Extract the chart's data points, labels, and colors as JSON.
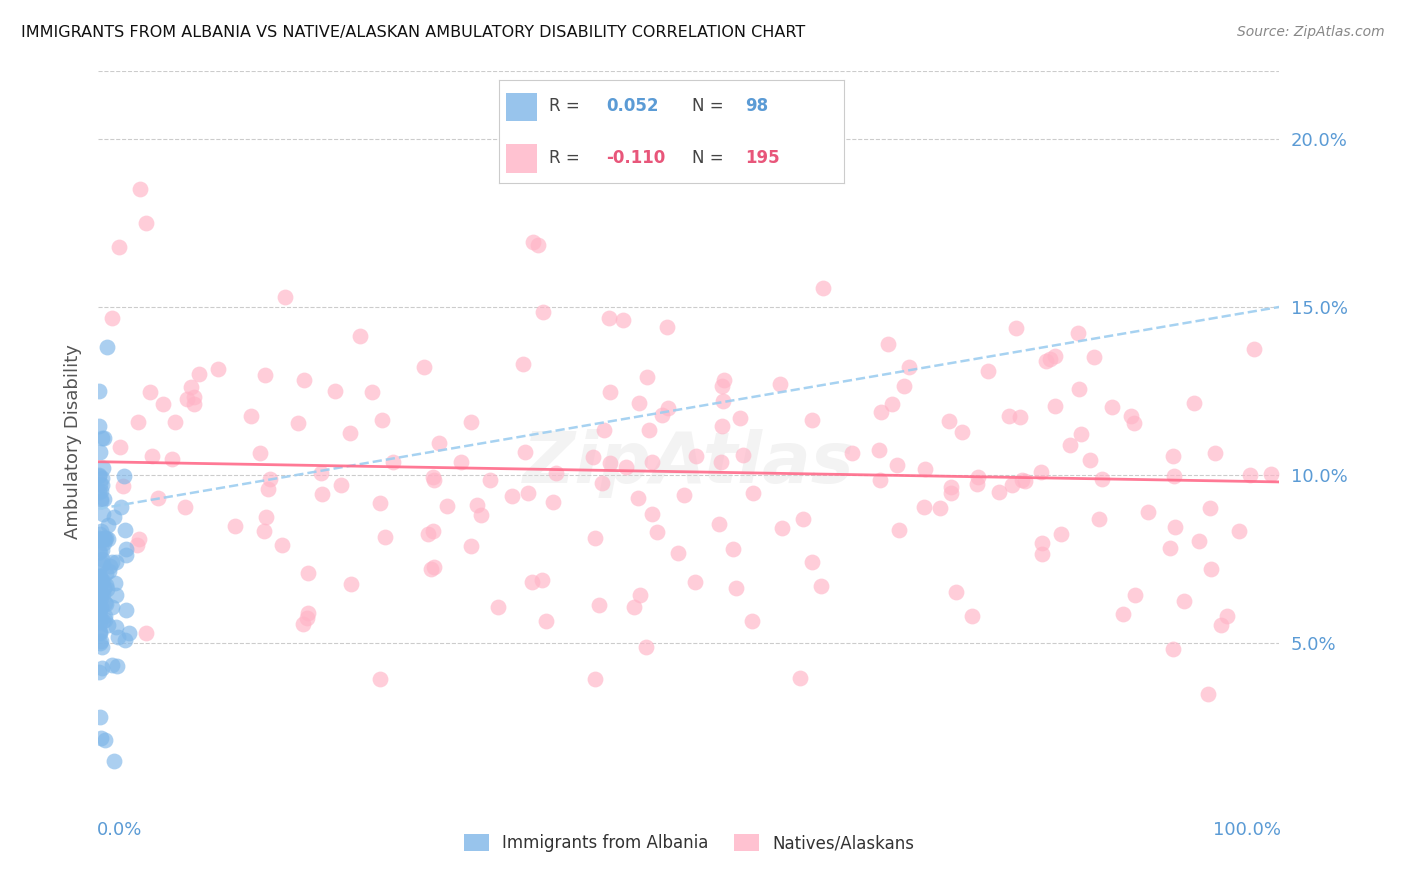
{
  "title": "IMMIGRANTS FROM ALBANIA VS NATIVE/ALASKAN AMBULATORY DISABILITY CORRELATION CHART",
  "source": "Source: ZipAtlas.com",
  "ylabel": "Ambulatory Disability",
  "r_albania": 0.052,
  "n_albania": 98,
  "r_native": -0.11,
  "n_native": 195,
  "color_albania": "#7EB6E8",
  "color_native": "#FFB3C6",
  "color_trendline_albania": "#9ECEF0",
  "color_trendline_native": "#FF6B8A",
  "background_color": "#FFFFFF",
  "xmin": 0.0,
  "xmax": 1.0,
  "ymin": 0.0,
  "ymax": 0.22,
  "ytick_vals": [
    0.05,
    0.1,
    0.15,
    0.2
  ],
  "ytick_labels": [
    "5.0%",
    "10.0%",
    "15.0%",
    "20.0%"
  ],
  "tick_color": "#5B9BD5",
  "legend_r1": "0.052",
  "legend_n1": "98",
  "legend_r2": "-0.110",
  "legend_n2": "195",
  "legend_color1": "#5B9BD5",
  "legend_color2": "#E8567A",
  "watermark": "ZipAtlas",
  "label_albania": "Immigrants from Albania",
  "label_native": "Natives/Alaskans"
}
